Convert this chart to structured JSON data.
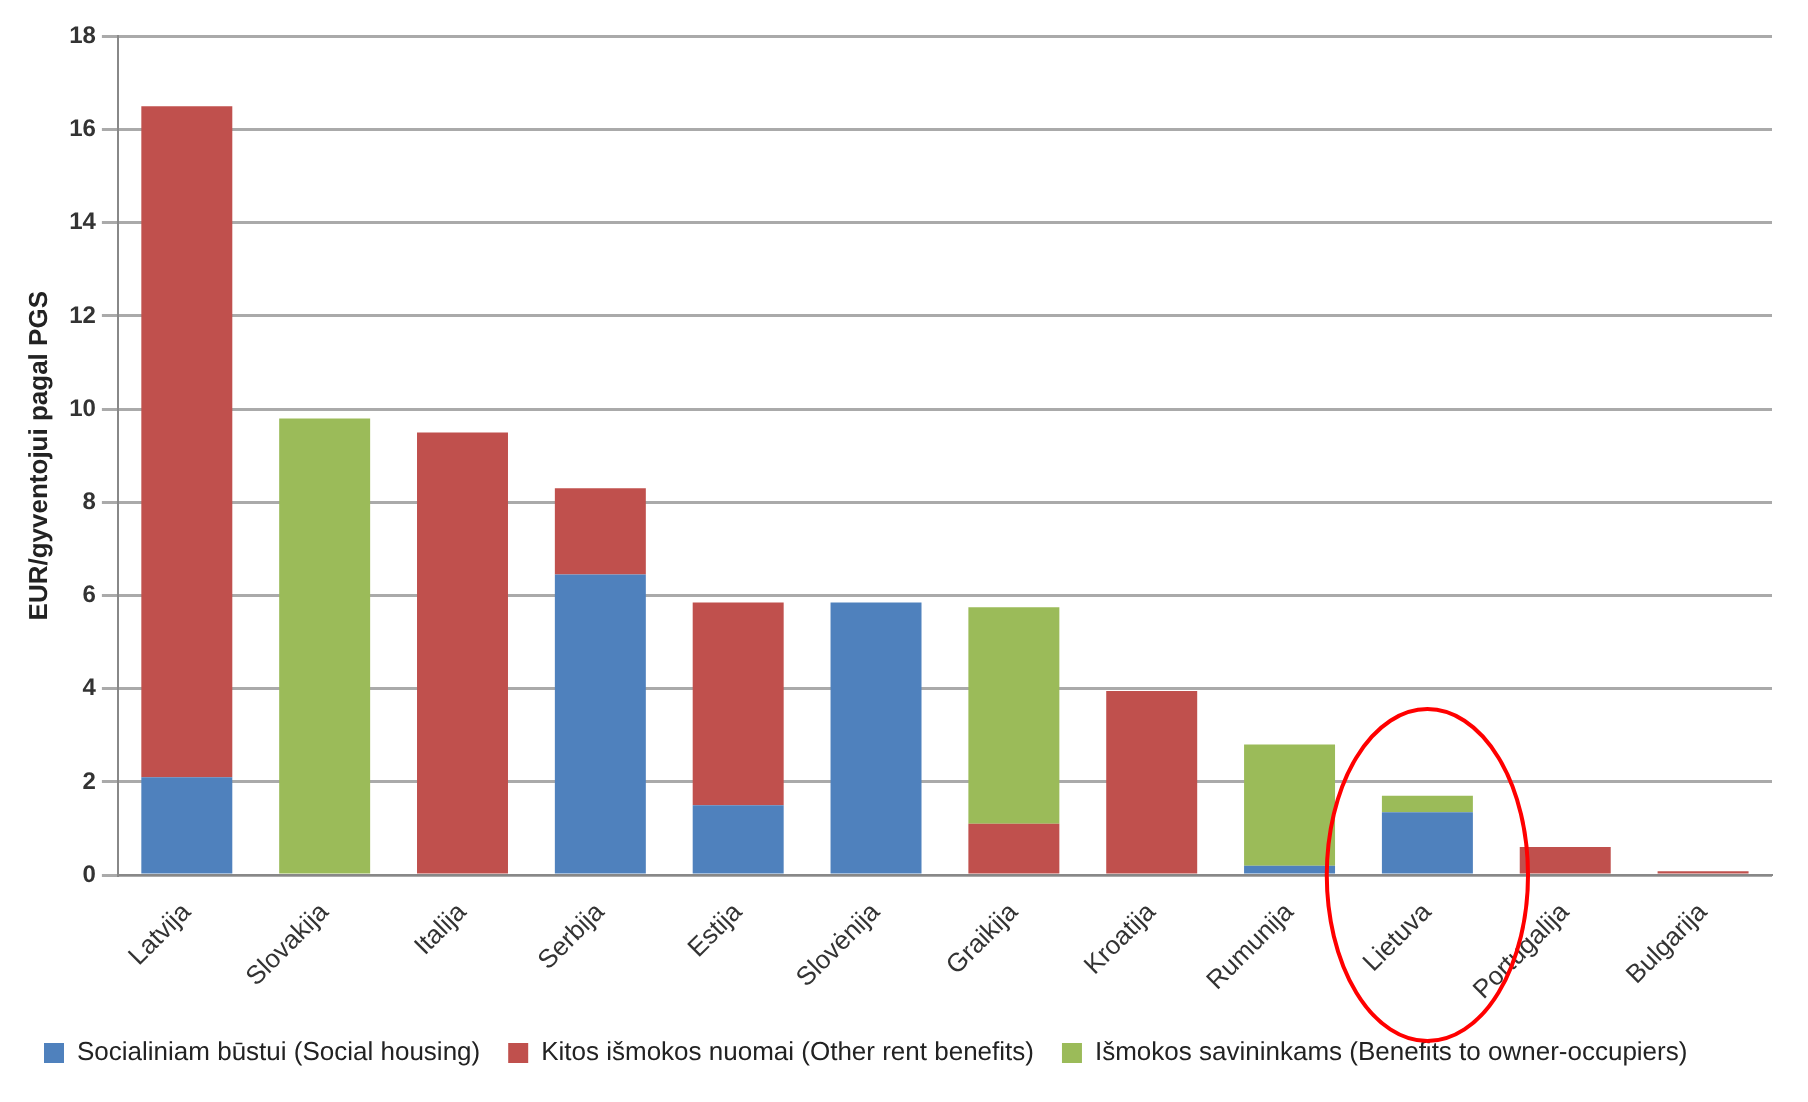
{
  "chart_data": {
    "type": "bar",
    "stacked": true,
    "ylabel": "EUR/gyventojui pagal PGS",
    "categories": [
      "Latvija",
      "Slovakija",
      "Italija",
      "Serbija",
      "Estija",
      "Slovėnija",
      "Graikija",
      "Kroatija",
      "Rumunija",
      "Lietuva",
      "Portugalija",
      "Bulgarija"
    ],
    "series": [
      {
        "name": "Socialiniam būstui (Social housing)",
        "color": "#4f81bd",
        "values": [
          2.1,
          null,
          null,
          6.45,
          1.5,
          5.85,
          null,
          null,
          0.2,
          1.35,
          null,
          null
        ]
      },
      {
        "name": "Kitos išmokos nuomai (Other rent benefits)",
        "color": "#c0504d",
        "values": [
          14.4,
          null,
          9.5,
          1.85,
          4.35,
          null,
          1.1,
          3.95,
          null,
          null,
          0.6,
          0.08
        ]
      },
      {
        "name": "Išmokos savininkams (Benefits to owner-occupiers)",
        "color": "#9bbb59",
        "values": [
          null,
          9.8,
          null,
          null,
          null,
          null,
          4.65,
          null,
          2.6,
          0.35,
          null,
          null
        ]
      }
    ],
    "ylim": [
      0,
      18
    ],
    "yticks": [
      0,
      2,
      4,
      6,
      8,
      10,
      12,
      14,
      16,
      18
    ],
    "grid": "y",
    "legend": "bottom"
  }
}
